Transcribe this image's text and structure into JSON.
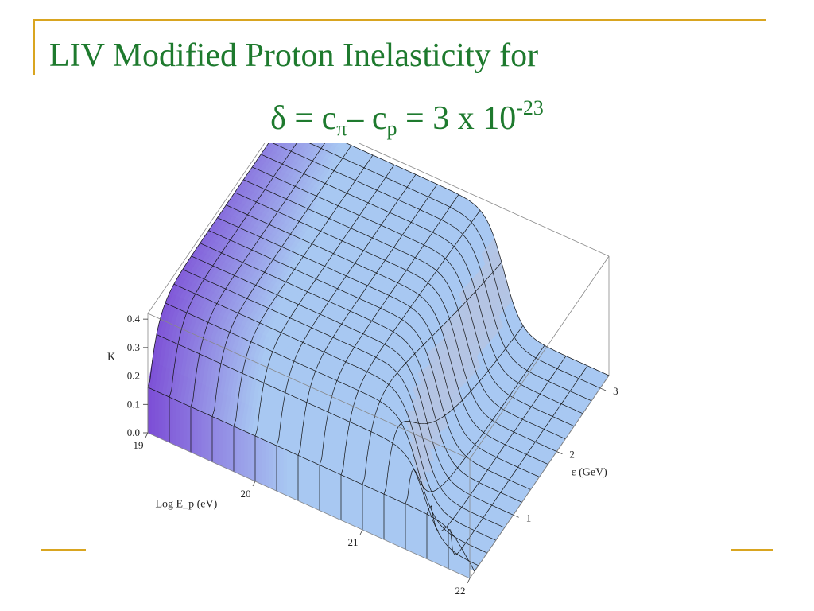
{
  "title": {
    "line1": "LIV Modified Proton Inelasticity for",
    "delta": "δ",
    "eq1": " =  c",
    "sub_pi": "π",
    "dash": "– c",
    "sub_p": "p",
    "eq2": " = 3 x 10",
    "exp": "-23"
  },
  "colors": {
    "title": "#1e7a2e",
    "accent": "#d9a520",
    "surface_low": "#7d4fd6",
    "surface_high": "#a8c8f2",
    "transition": "#f2b19a",
    "mesh": "#111111",
    "box": "#888888"
  },
  "chart_data": {
    "type": "surface3d",
    "xlabel": "Log E_p (eV)",
    "ylabel": "ε (GeV)",
    "zlabel": "K",
    "x_ticks": [
      "19",
      "20",
      "21",
      "22"
    ],
    "y_ticks": [
      "1",
      "2",
      "3"
    ],
    "z_ticks": [
      "0.0",
      "0.1",
      "0.2",
      "0.3",
      "0.4"
    ],
    "xlim": [
      19,
      22
    ],
    "ylim": [
      0,
      3.2
    ],
    "zlim": [
      0,
      0.42
    ],
    "grid_x": [
      19.0,
      19.2,
      19.4,
      19.6,
      19.8,
      20.0,
      20.2,
      20.4,
      20.6,
      20.8,
      21.0,
      21.2,
      21.4,
      21.6,
      21.8,
      22.0
    ],
    "grid_y": [
      0.0,
      0.2,
      0.4,
      0.6,
      0.8,
      1.0,
      1.2,
      1.4,
      1.6,
      1.8,
      2.0,
      2.2,
      2.4,
      2.6,
      2.8,
      3.0,
      3.2
    ],
    "k_plateau": 0.4,
    "k_baseline": 0.1,
    "k_after_cutoff": 0.0,
    "cutoff_log_ep": [
      20.45,
      21.95
    ],
    "cutoff_width": 0.08
  }
}
